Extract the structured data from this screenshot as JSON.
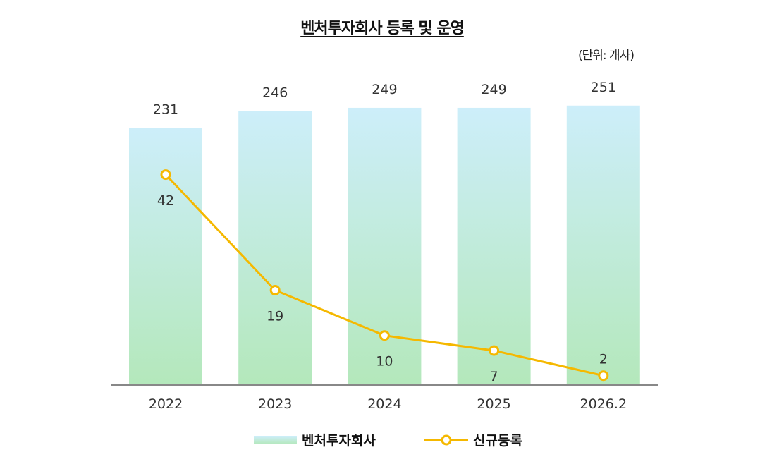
{
  "chart_data": {
    "type": "bar+line",
    "title": "벤처투자회사 등록 및 운영",
    "unit": "(단위: 개사)",
    "categories": [
      "2022",
      "2023",
      "2024",
      "2025",
      "2026.2"
    ],
    "series": [
      {
        "name": "벤처투자회사",
        "type": "bar",
        "values": [
          231,
          246,
          249,
          249,
          251
        ],
        "color_top": "#cdeefa",
        "color_bottom": "#b4e8bb"
      },
      {
        "name": "신규등록",
        "type": "line",
        "values": [
          42,
          19,
          10,
          7,
          2
        ],
        "color": "#f5b800"
      }
    ],
    "bar_ylim": [
      0,
      280
    ],
    "line_ylim": [
      0,
      62
    ],
    "grid": false,
    "legend": "bottom-center",
    "axis_color": "#888888"
  }
}
